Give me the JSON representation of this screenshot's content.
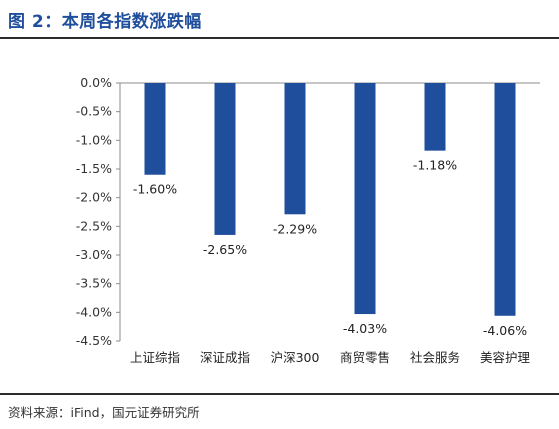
{
  "figure": {
    "title": "图 2：本周各指数涨跌幅",
    "source": "资料来源：iFind，国元证券研究所"
  },
  "colors": {
    "bar": "#1f4e9c",
    "title": "#1f4e9c",
    "axis": "#8c8c8c"
  },
  "chart_data": {
    "type": "bar",
    "title": "",
    "xlabel": "",
    "ylabel": "",
    "categories": [
      "上证综指",
      "深证成指",
      "沪深300",
      "商贸零售",
      "社会服务",
      "美容护理"
    ],
    "values": [
      -1.6,
      -2.65,
      -2.29,
      -4.03,
      -1.18,
      -4.06
    ],
    "data_labels": [
      "-1.60%",
      "-2.65%",
      "-2.29%",
      "-4.03%",
      "-1.18%",
      "-4.06%"
    ],
    "ylim": [
      -4.5,
      0
    ],
    "yticks": [
      0,
      -0.5,
      -1.0,
      -1.5,
      -2.0,
      -2.5,
      -3.0,
      -3.5,
      -4.0,
      -4.5
    ],
    "ytick_labels": [
      "0.0%",
      "-0.5%",
      "-1.0%",
      "-1.5%",
      "-2.0%",
      "-2.5%",
      "-3.0%",
      "-3.5%",
      "-4.0%",
      "-4.5%"
    ],
    "grid": false,
    "legend": "none"
  }
}
